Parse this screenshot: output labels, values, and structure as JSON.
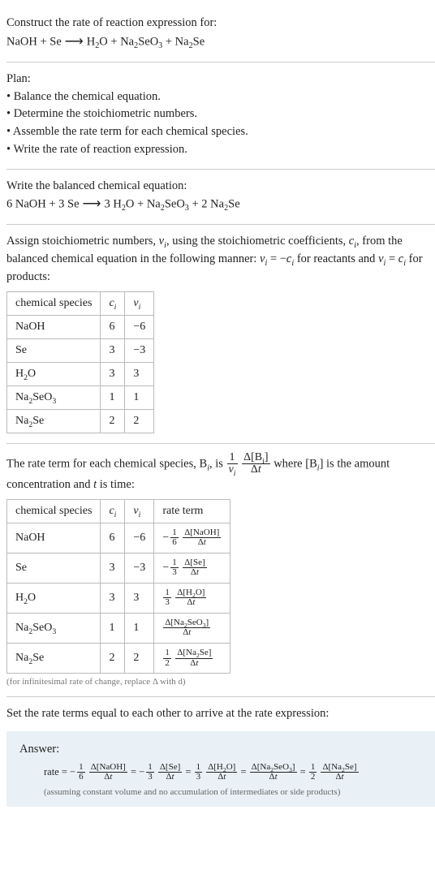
{
  "section1": {
    "prompt": "Construct the rate of reaction expression for:",
    "equation": {
      "lhs1": "NaOH",
      "plus1": " + ",
      "lhs2": "Se",
      "arrow": " ⟶ ",
      "rhs1": "H",
      "rhs1s": "2",
      "rhs1b": "O",
      "plus2": " + ",
      "rhs2": "Na",
      "rhs2s": "2",
      "rhs2b": "SeO",
      "rhs2s2": "3",
      "plus3": " + ",
      "rhs3": "Na",
      "rhs3s": "2",
      "rhs3b": "Se"
    }
  },
  "section2": {
    "title": "Plan:",
    "items": {
      "i1": "• Balance the chemical equation.",
      "i2": "• Determine the stoichiometric numbers.",
      "i3": "• Assemble the rate term for each chemical species.",
      "i4": "• Write the rate of reaction expression."
    }
  },
  "section3": {
    "title": "Write the balanced chemical equation:",
    "eq": {
      "a": "6 NaOH",
      "b": " + ",
      "c": "3 Se",
      "arrow": " ⟶ ",
      "d": "3 H",
      "ds": "2",
      "db": "O",
      "e": " + ",
      "f": "Na",
      "fs": "2",
      "fb": "SeO",
      "fs2": "3",
      "g": " + ",
      "h": "2 Na",
      "hs": "2",
      "hb": "Se"
    }
  },
  "section4": {
    "text_a": "Assign stoichiometric numbers, ",
    "nu": "ν",
    "i_sub": "i",
    "text_b": ", using the stoichiometric coefficients, ",
    "c": "c",
    "text_c": ", from the balanced chemical equation in the following manner: ",
    "eq1a": "ν",
    "eq1b": " = −",
    "eq1c": "c",
    "text_d": " for reactants and ",
    "eq2a": "ν",
    "eq2b": " = ",
    "eq2c": "c",
    "text_e": " for products:",
    "table": {
      "h1": "chemical species",
      "h2": "c",
      "h2s": "i",
      "h3": "ν",
      "h3s": "i",
      "r1": {
        "sp": "NaOH",
        "c": "6",
        "v": "−6"
      },
      "r2": {
        "sp": "Se",
        "c": "3",
        "v": "−3"
      },
      "r3": {
        "sp_pre": "H",
        "sp_sub": "2",
        "sp_post": "O",
        "c": "3",
        "v": "3"
      },
      "r4": {
        "sp_pre": "Na",
        "sp_sub": "2",
        "sp_mid": "SeO",
        "sp_sub2": "3",
        "c": "1",
        "v": "1"
      },
      "r5": {
        "sp_pre": "Na",
        "sp_sub": "2",
        "sp_post": "Se",
        "c": "2",
        "v": "2"
      }
    }
  },
  "section5": {
    "text_a": "The rate term for each chemical species, B",
    "i_sub": "i",
    "text_b": ", is ",
    "frac1_top": "1",
    "frac1_bot_a": "ν",
    "frac1_bot_b": "i",
    "frac2_top_a": "Δ[B",
    "frac2_top_b": "i",
    "frac2_top_c": "]",
    "frac2_bot": "Δt",
    "text_c": " where [B",
    "text_d": "] is the amount concentration and ",
    "t": "t",
    "text_e": " is time:",
    "table": {
      "h1": "chemical species",
      "h2": "c",
      "h2s": "i",
      "h3": "ν",
      "h3s": "i",
      "h4": "rate term",
      "r1": {
        "sp": "NaOH",
        "c": "6",
        "v": "−6",
        "neg": "−",
        "ft": "1",
        "fb": "6",
        "nt": "Δ[NaOH]",
        "nb": "Δt"
      },
      "r2": {
        "sp": "Se",
        "c": "3",
        "v": "−3",
        "neg": "−",
        "ft": "1",
        "fb": "3",
        "nt": "Δ[Se]",
        "nb": "Δt"
      },
      "r3": {
        "sp_pre": "H",
        "sp_sub": "2",
        "sp_post": "O",
        "c": "3",
        "v": "3",
        "ft": "1",
        "fb": "3",
        "nt_a": "Δ[H",
        "nt_b": "2",
        "nt_c": "O]",
        "nb": "Δt"
      },
      "r4": {
        "sp_pre": "Na",
        "sp_sub": "2",
        "sp_mid": "SeO",
        "sp_sub2": "3",
        "c": "1",
        "v": "1",
        "nt_a": "Δ[Na",
        "nt_b": "2",
        "nt_c": "SeO",
        "nt_d": "3",
        "nt_e": "]",
        "nb": "Δt"
      },
      "r5": {
        "sp_pre": "Na",
        "sp_sub": "2",
        "sp_post": "Se",
        "c": "2",
        "v": "2",
        "ft": "1",
        "fb": "2",
        "nt_a": "Δ[Na",
        "nt_b": "2",
        "nt_c": "Se]",
        "nb": "Δt"
      }
    },
    "note": "(for infinitesimal rate of change, replace Δ with d)"
  },
  "section6": {
    "title": "Set the rate terms equal to each other to arrive at the rate expression:"
  },
  "answer": {
    "label": "Answer:",
    "rate": "rate = ",
    "t1_neg": "−",
    "t1_ft": "1",
    "t1_fb": "6",
    "t1_nt": "Δ[NaOH]",
    "t1_nb": "Δt",
    "eq": " = ",
    "t2_neg": "−",
    "t2_ft": "1",
    "t2_fb": "3",
    "t2_nt": "Δ[Se]",
    "t2_nb": "Δt",
    "t3_ft": "1",
    "t3_fb": "3",
    "t3_nt_a": "Δ[H",
    "t3_nt_b": "2",
    "t3_nt_c": "O]",
    "t3_nb": "Δt",
    "t4_nt_a": "Δ[Na",
    "t4_nt_b": "2",
    "t4_nt_c": "SeO",
    "t4_nt_d": "3",
    "t4_nt_e": "]",
    "t4_nb": "Δt",
    "t5_ft": "1",
    "t5_fb": "2",
    "t5_nt_a": "Δ[Na",
    "t5_nt_b": "2",
    "t5_nt_c": "Se]",
    "t5_nb": "Δt",
    "sub": "(assuming constant volume and no accumulation of intermediates or side products)"
  }
}
